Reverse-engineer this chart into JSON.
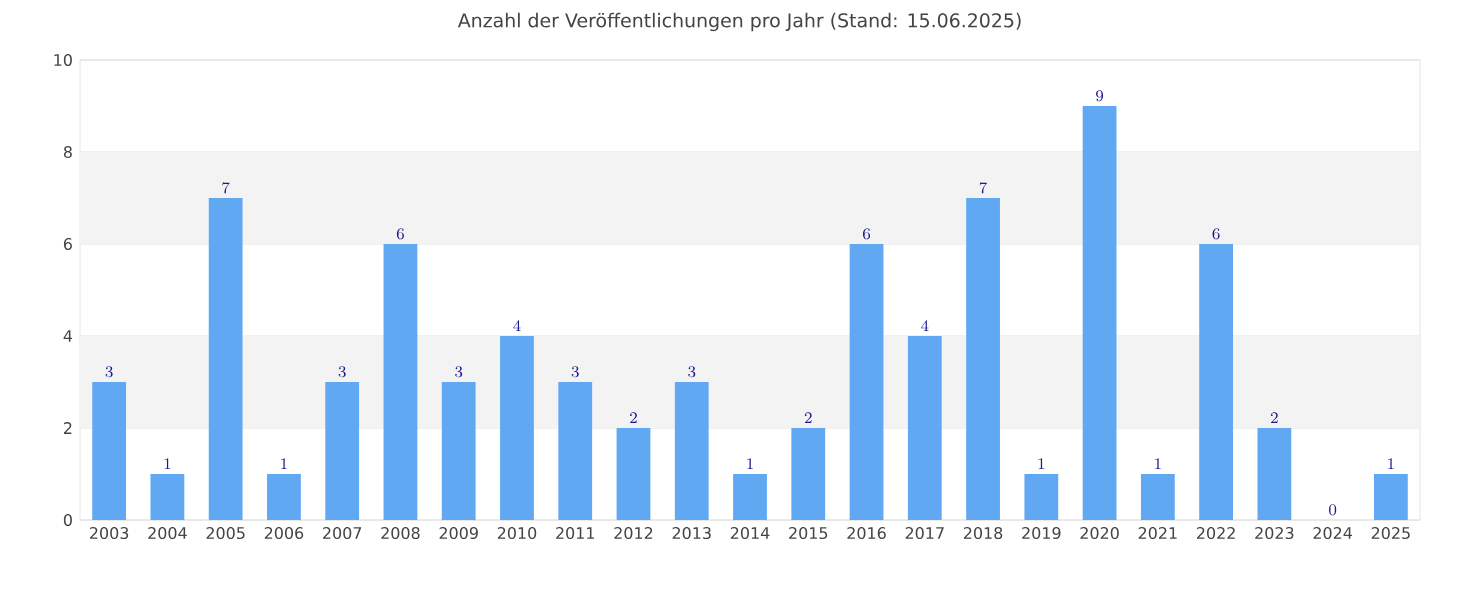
{
  "chart_data": {
    "type": "bar",
    "title": "Anzahl der Veröffentlichungen pro Jahr (Stand: 15.06.2025)",
    "categories": [
      "2003",
      "2004",
      "2005",
      "2006",
      "2007",
      "2008",
      "2009",
      "2010",
      "2011",
      "2012",
      "2013",
      "2014",
      "2015",
      "2016",
      "2017",
      "2018",
      "2019",
      "2020",
      "2021",
      "2022",
      "2023",
      "2024",
      "2025"
    ],
    "values": [
      3,
      1,
      7,
      1,
      3,
      6,
      3,
      4,
      3,
      2,
      3,
      1,
      2,
      6,
      4,
      7,
      1,
      9,
      1,
      6,
      2,
      0,
      1
    ],
    "color": "#60a8f2",
    "ylim": [
      0,
      10
    ],
    "yticks": [
      0,
      2,
      4,
      6,
      8,
      10
    ],
    "grid": "y",
    "data_labels": true,
    "bands": [
      {
        "axis": "y",
        "from": 2,
        "to": 4,
        "color": "#f3f3f3"
      },
      {
        "axis": "y",
        "from": 6,
        "to": 8,
        "color": "#f3f3f3"
      }
    ]
  }
}
